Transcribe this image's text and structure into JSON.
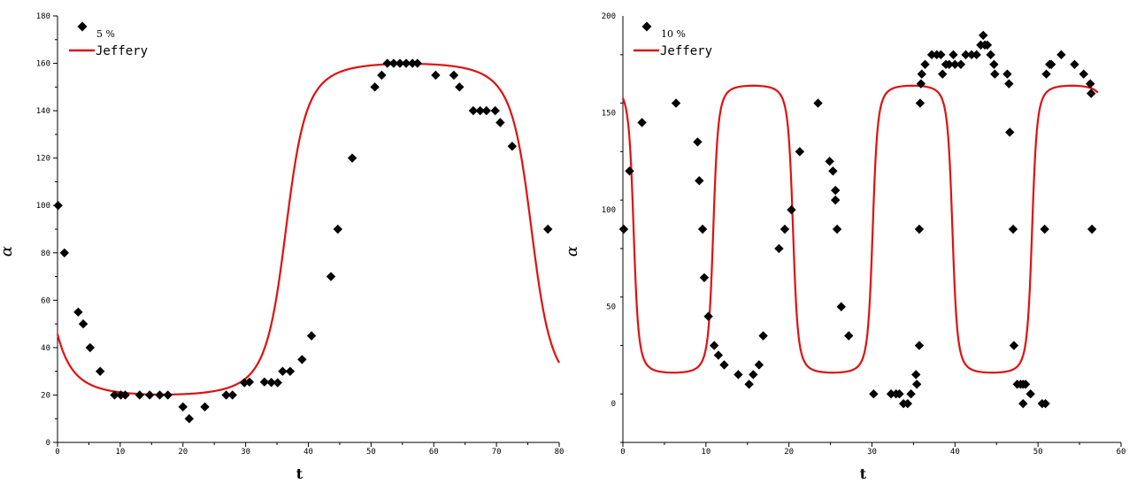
{
  "chart_data": [
    {
      "type": "scatter",
      "xlabel": "t",
      "ylabel": "α",
      "xlim": [
        0,
        80
      ],
      "ylim": [
        0,
        180
      ],
      "xticks": [
        0,
        10,
        20,
        30,
        40,
        50,
        60,
        70,
        80
      ],
      "yticks": [
        0,
        20,
        40,
        60,
        80,
        100,
        120,
        140,
        160,
        180
      ],
      "legend": [
        "5 %",
        "Jeffery"
      ],
      "legend_position": "top-left",
      "scatter_color": "#000000",
      "line_color": "#e01010",
      "series": [
        {
          "name": "5 %",
          "kind": "points",
          "points": [
            [
              0.1,
              100
            ],
            [
              1.1,
              80
            ],
            [
              3.3,
              55
            ],
            [
              4.1,
              50
            ],
            [
              5.2,
              40
            ],
            [
              6.8,
              30
            ],
            [
              9.1,
              20
            ],
            [
              10.1,
              20
            ],
            [
              10.8,
              20
            ],
            [
              13.1,
              20
            ],
            [
              14.7,
              20
            ],
            [
              16.3,
              20
            ],
            [
              17.6,
              20
            ],
            [
              20,
              15
            ],
            [
              21,
              10
            ],
            [
              23.5,
              15
            ],
            [
              26.9,
              20
            ],
            [
              27.9,
              20
            ],
            [
              29.8,
              25.2
            ],
            [
              30.6,
              25.5
            ],
            [
              33,
              25.5
            ],
            [
              34.1,
              25.3
            ],
            [
              35.1,
              25.2
            ],
            [
              35.9,
              30
            ],
            [
              37.1,
              30
            ],
            [
              39,
              35
            ],
            [
              40.5,
              45
            ],
            [
              43.6,
              70
            ],
            [
              44.7,
              90
            ],
            [
              47,
              120
            ],
            [
              50.6,
              150
            ],
            [
              51.7,
              155
            ],
            [
              52.6,
              160
            ],
            [
              53.6,
              160
            ],
            [
              54.6,
              160
            ],
            [
              55.6,
              160
            ],
            [
              56.6,
              160
            ],
            [
              57.4,
              160
            ],
            [
              60.3,
              155
            ],
            [
              63.2,
              155
            ],
            [
              64.1,
              150
            ],
            [
              66.3,
              140
            ],
            [
              67.4,
              140
            ],
            [
              68.4,
              140
            ],
            [
              69.8,
              140
            ],
            [
              70.6,
              135
            ],
            [
              72.5,
              125
            ],
            [
              78.2,
              90
            ]
          ]
        },
        {
          "name": "Jeffery",
          "kind": "curve",
          "model": "jeffery",
          "params": {
            "mid": 90,
            "amp": 69.8,
            "ratio": 3.7,
            "period": 78.3,
            "phase": 3.36,
            "t0": 0,
            "t1": 80
          }
        }
      ]
    },
    {
      "type": "scatter",
      "xlabel": "t",
      "ylabel": "α",
      "xlim": [
        0,
        60
      ],
      "ylim": [
        -20,
        200
      ],
      "xticks": [
        0,
        10,
        20,
        30,
        40,
        50,
        60
      ],
      "yticks": [
        0,
        50,
        100,
        150,
        200
      ],
      "legend": [
        "10 %",
        "Jeffery"
      ],
      "legend_position": "top-left",
      "scatter_color": "#000000",
      "line_color": "#e01010",
      "series": [
        {
          "name": "10 %",
          "kind": "points",
          "points": [
            [
              0.1,
              90
            ],
            [
              0.8,
              120
            ],
            [
              2.3,
              145
            ],
            [
              6.4,
              155
            ],
            [
              9,
              135
            ],
            [
              9.2,
              115
            ],
            [
              9.6,
              90
            ],
            [
              9.8,
              65
            ],
            [
              10.3,
              45
            ],
            [
              11,
              30
            ],
            [
              11.5,
              25
            ],
            [
              12.2,
              20
            ],
            [
              13.9,
              15
            ],
            [
              15.2,
              10
            ],
            [
              15.7,
              15
            ],
            [
              16.4,
              20
            ],
            [
              16.9,
              35
            ],
            [
              18.8,
              80
            ],
            [
              19.5,
              90
            ],
            [
              20.3,
              100
            ],
            [
              21.3,
              130
            ],
            [
              23.5,
              155
            ],
            [
              24.9,
              125
            ],
            [
              25.3,
              120
            ],
            [
              25.6,
              110
            ],
            [
              25.6,
              105
            ],
            [
              25.8,
              90
            ],
            [
              26.3,
              50
            ],
            [
              27.2,
              35
            ],
            [
              30.2,
              5
            ],
            [
              32.3,
              5
            ],
            [
              32.9,
              5
            ],
            [
              33.3,
              5
            ],
            [
              33.8,
              0
            ],
            [
              34.3,
              0
            ],
            [
              34.7,
              5
            ],
            [
              35.3,
              15
            ],
            [
              35.4,
              10
            ],
            [
              35.7,
              30
            ],
            [
              35.7,
              90
            ],
            [
              35.8,
              155
            ],
            [
              35.9,
              165
            ],
            [
              36,
              170
            ],
            [
              36.4,
              175
            ],
            [
              37.2,
              180
            ],
            [
              37.8,
              180
            ],
            [
              38.3,
              180
            ],
            [
              38.5,
              170
            ],
            [
              38.9,
              175
            ],
            [
              39.3,
              175
            ],
            [
              39.8,
              180
            ],
            [
              40,
              175
            ],
            [
              40.7,
              175
            ],
            [
              41.3,
              180
            ],
            [
              42,
              180
            ],
            [
              42.6,
              180
            ],
            [
              43.1,
              185
            ],
            [
              43.4,
              190
            ],
            [
              43.6,
              185
            ],
            [
              43.9,
              185
            ],
            [
              44.3,
              180
            ],
            [
              44.7,
              175
            ],
            [
              44.8,
              170
            ],
            [
              46.3,
              170
            ],
            [
              46.5,
              165
            ],
            [
              46.6,
              140
            ],
            [
              47,
              90
            ],
            [
              47.1,
              30
            ],
            [
              47.5,
              10
            ],
            [
              47.9,
              10
            ],
            [
              48.2,
              10
            ],
            [
              48.2,
              0
            ],
            [
              48.5,
              10
            ],
            [
              49.1,
              5
            ],
            [
              50.5,
              0
            ],
            [
              50.8,
              90
            ],
            [
              50.9,
              0
            ],
            [
              51,
              170
            ],
            [
              51.4,
              175
            ],
            [
              51.6,
              175
            ],
            [
              52.8,
              180
            ],
            [
              54.4,
              175
            ],
            [
              55.5,
              170
            ],
            [
              56.3,
              165
            ],
            [
              56.4,
              160
            ],
            [
              56.5,
              90
            ]
          ]
        },
        {
          "name": "Jeffery",
          "kind": "curve",
          "model": "jeffery",
          "params": {
            "mid": 90,
            "amp": 74,
            "ratio": 5,
            "period": 19.2,
            "phase": 2.72,
            "t0": 0,
            "t1": 57.2
          }
        }
      ]
    }
  ]
}
